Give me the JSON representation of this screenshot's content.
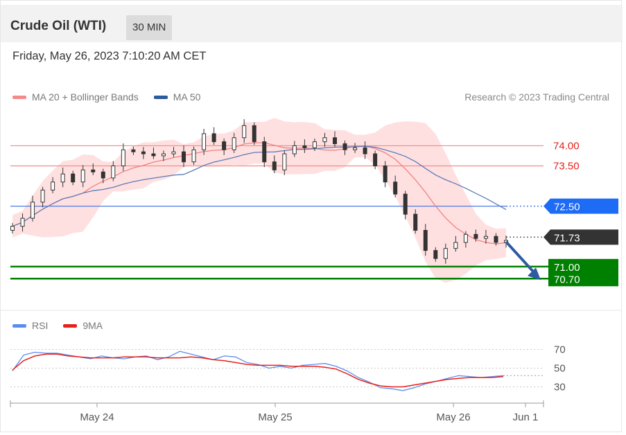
{
  "header": {
    "title": "Crude Oil (WTI)",
    "timeframe": "30 MIN"
  },
  "datetime": "Friday, May 26, 2023 7:10:20 AM CET",
  "legend": {
    "ma20": "MA 20 + Bollinger Bands",
    "ma50": "MA 50",
    "credit": "Research © 2023 Trading Central",
    "rsi": "RSI",
    "ma9": "9MA"
  },
  "colors": {
    "ma20": "#f08080",
    "bands": "#ffd6d6",
    "ma50": "#5b7bb8",
    "candle": "#333333",
    "resistance_74": "#f28b8b",
    "resistance_735": "#f28b8b",
    "pivot": "#4a7be8",
    "pivot_label": "#1e6bf5",
    "current": "#333333",
    "support": "#008000",
    "arrow": "#2e5aa0",
    "rsi": "#5b8df0",
    "rsi_ma": "#e8201a",
    "level_74_text": "#e8201a"
  },
  "chart_data": [
    {
      "type": "line",
      "title": "Crude Oil (WTI) 30 MIN",
      "x_labels": [
        "May 24",
        "May 25",
        "May 26",
        "Jun 1"
      ],
      "price_levels": [
        {
          "label": "74.00",
          "value": 74.0,
          "kind": "resistance"
        },
        {
          "label": "73.50",
          "value": 73.5,
          "kind": "resistance"
        },
        {
          "label": "72.50",
          "value": 72.5,
          "kind": "pivot"
        },
        {
          "label": "71.73",
          "value": 71.73,
          "kind": "last"
        },
        {
          "label": "71.00",
          "value": 71.0,
          "kind": "support"
        },
        {
          "label": "70.70",
          "value": 70.7,
          "kind": "support"
        }
      ],
      "close": [
        72.0,
        72.2,
        72.6,
        72.9,
        73.1,
        73.3,
        73.1,
        73.4,
        73.35,
        73.2,
        73.5,
        73.9,
        73.85,
        73.8,
        73.75,
        73.8,
        73.85,
        73.6,
        73.9,
        74.3,
        74.1,
        73.9,
        74.2,
        74.5,
        74.1,
        73.6,
        73.4,
        73.8,
        74.0,
        73.95,
        74.1,
        74.2,
        74.05,
        73.9,
        73.95,
        73.8,
        73.5,
        73.1,
        72.8,
        72.3,
        71.9,
        71.4,
        71.2,
        71.45,
        71.6,
        71.8,
        71.7,
        71.75,
        71.6,
        71.65
      ],
      "series": [
        {
          "name": "MA 20 + Bollinger Bands"
        },
        {
          "name": "MA 50"
        }
      ],
      "ylim": [
        70.55,
        74.85
      ]
    },
    {
      "type": "line",
      "series": [
        {
          "name": "RSI",
          "values": [
            47,
            64,
            67,
            66,
            66,
            64,
            62,
            60,
            63,
            61,
            60,
            62,
            63,
            59,
            62,
            68,
            65,
            62,
            59,
            63,
            62,
            56,
            54,
            50,
            52,
            50,
            53,
            54,
            55,
            52,
            47,
            40,
            35,
            29,
            28,
            26,
            29,
            33,
            36,
            39,
            42,
            41,
            40,
            41,
            42
          ]
        },
        {
          "name": "9MA",
          "values": [
            48,
            58,
            63,
            65,
            65,
            63,
            62,
            61,
            61,
            61,
            62,
            62,
            62,
            61,
            61,
            61,
            62,
            61,
            59,
            58,
            56,
            54,
            53,
            53,
            53,
            52,
            52,
            52,
            51,
            49,
            44,
            38,
            34,
            31,
            30,
            30,
            32,
            34,
            36,
            38,
            39,
            40,
            40,
            40,
            41
          ]
        }
      ],
      "y_ticks": [
        "70",
        "50",
        "30"
      ],
      "ylim": [
        17,
        80
      ]
    }
  ]
}
